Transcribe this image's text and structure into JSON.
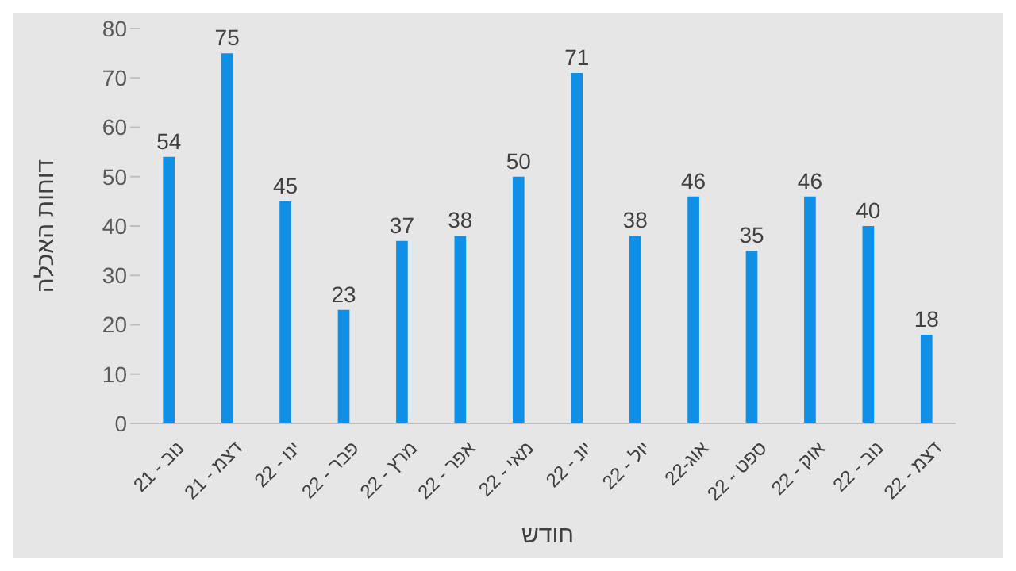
{
  "chart_data": {
    "type": "bar",
    "xlabel": "חודש",
    "ylabel": "דוחות האכלה",
    "categories": [
      "נוב - 21",
      "דצמ - 21",
      "ינו - 22",
      "פבר - 22",
      "מרץ - 22",
      "אפר - 22",
      "מאי - 22",
      "יונ - 22",
      "יול - 22",
      "אוג-22",
      "ספט - 22",
      "אוק - 22",
      "נוב - 22",
      "דצמ - 22"
    ],
    "values": [
      54,
      75,
      45,
      23,
      37,
      38,
      50,
      71,
      38,
      46,
      35,
      46,
      40,
      18
    ],
    "color": "#0f8fe6",
    "ylim": [
      0,
      80
    ],
    "yticks": [
      0,
      10,
      20,
      30,
      40,
      50,
      60,
      70,
      80
    ],
    "grid": false,
    "data_labels": true
  }
}
